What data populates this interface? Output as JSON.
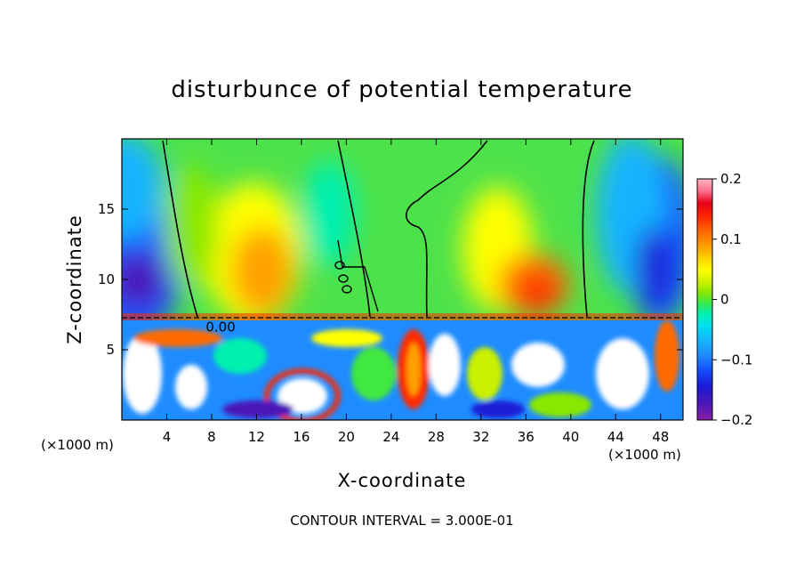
{
  "chart_data": {
    "type": "heatmap",
    "title": "disturbunce of potential temperature",
    "xlabel": "X-coordinate",
    "ylabel": "Z-coordinate",
    "x_scale_note": "(×1000 m)",
    "z_scale_note": "(×1000 m)",
    "contour_note": "CONTOUR INTERVAL = 3.000E-01",
    "xlim": [
      0,
      50
    ],
    "ylim": [
      0,
      20
    ],
    "x_ticks": [
      4,
      8,
      12,
      16,
      20,
      24,
      28,
      32,
      36,
      40,
      44,
      48
    ],
    "x_tick_labels": [
      "4",
      "8",
      "12",
      "16",
      "20",
      "24",
      "28",
      "32",
      "36",
      "40",
      "44",
      "48"
    ],
    "y_ticks": [
      5,
      10,
      15
    ],
    "y_tick_labels": [
      "5",
      "10",
      "15"
    ],
    "colorbar": {
      "range": [
        -0.2,
        0.2
      ],
      "tick_values": [
        0.2,
        0.1,
        0,
        -0.1,
        -0.2
      ],
      "tick_labels": [
        "0.2",
        "0.1",
        "0",
        "−0.1",
        "−0.2"
      ]
    },
    "contour_labels": [
      {
        "text": "0.00",
        "x": 8.8,
        "z": 6.3
      }
    ],
    "colors": {
      "colormap": [
        "#8a1fa8",
        "#4b16b8",
        "#1a1ad6",
        "#1452ff",
        "#1e8cff",
        "#14b4ff",
        "#00e0f0",
        "#00f0b0",
        "#40e840",
        "#88e800",
        "#c8f000",
        "#ffff00",
        "#ffd200",
        "#ffa000",
        "#ff6a00",
        "#ff2a00",
        "#e80018",
        "#ff6e90",
        "#ffb6c1"
      ],
      "background_field": "#4ee24a",
      "clipped": "#ffffff"
    }
  }
}
